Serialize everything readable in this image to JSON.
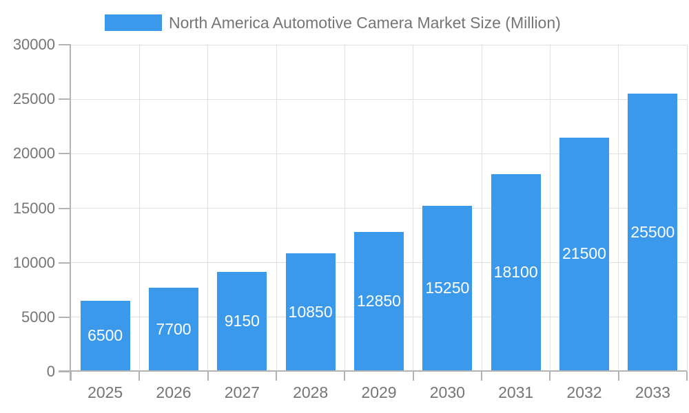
{
  "legend": {
    "label": "North America Automotive Camera Market Size (Million)"
  },
  "chart_data": {
    "type": "bar",
    "title": "North America Automotive Camera Market Size (Million)",
    "categories": [
      "2025",
      "2026",
      "2027",
      "2028",
      "2029",
      "2030",
      "2031",
      "2032",
      "2033"
    ],
    "values": [
      6500,
      7700,
      9150,
      10850,
      12850,
      15250,
      18100,
      21500,
      25500
    ],
    "xlabel": "",
    "ylabel": "",
    "ylim": [
      0,
      30000
    ],
    "yticks": [
      0,
      5000,
      10000,
      15000,
      20000,
      25000,
      30000
    ],
    "grid": true,
    "legend_position": "top",
    "colors": {
      "bar": "#3b99ec",
      "value_label": "#ffffff",
      "tick_label": "#757575",
      "axis": "#b3b3b3",
      "gridline": "#e0e0e0"
    }
  }
}
